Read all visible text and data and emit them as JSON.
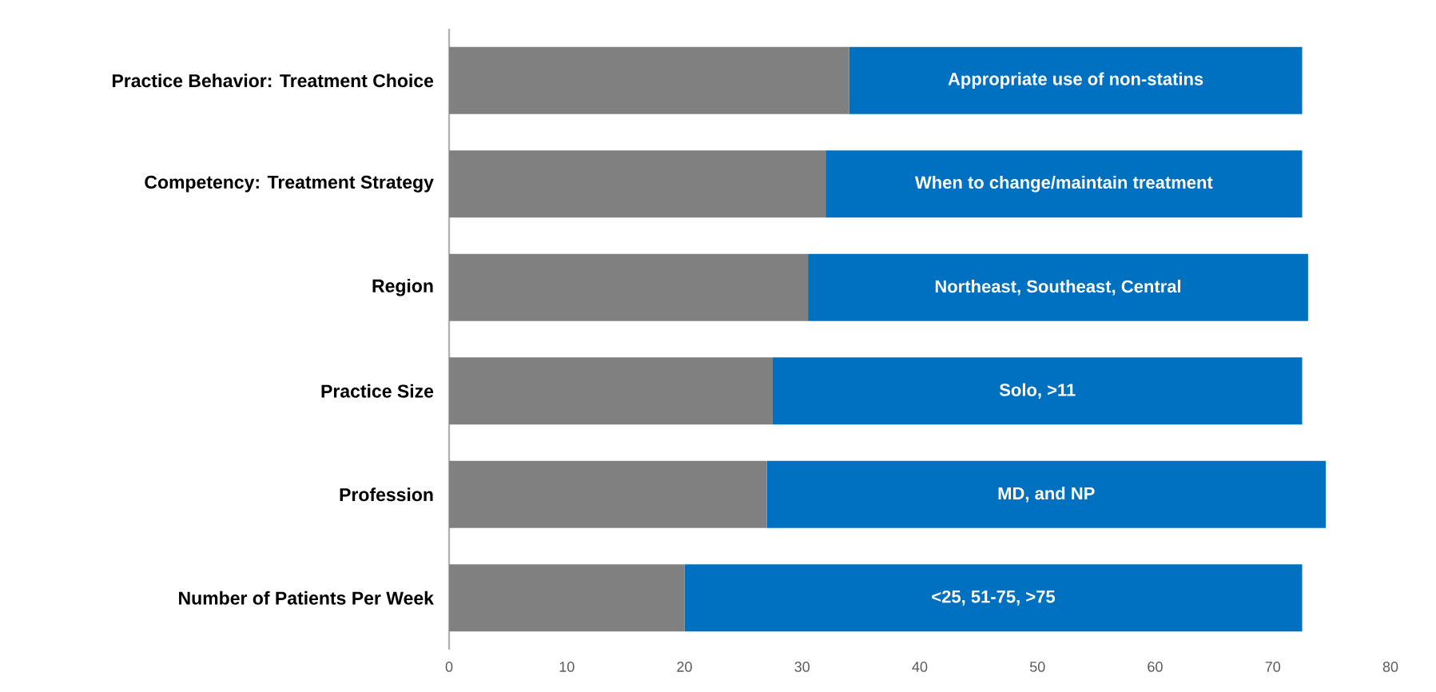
{
  "chart_data": {
    "type": "bar",
    "orientation": "horizontal",
    "stacked": true,
    "categories": [
      "Practice Behavior: Treatment Choice",
      "Competency: Treatment Strategy",
      "Region",
      "Practice Size",
      "Profession",
      "Number of Patients Per Week"
    ],
    "series": [
      {
        "color": "#808080",
        "values": [
          34,
          32,
          30.5,
          27.5,
          27,
          20
        ]
      },
      {
        "color": "#0070c0",
        "values": [
          38.5,
          40.5,
          42.5,
          45,
          47.5,
          52.5
        ]
      }
    ],
    "xlim": [
      0,
      80
    ],
    "xticks": [
      0,
      10,
      20,
      30,
      40,
      50,
      60,
      70,
      80
    ],
    "annotations": [
      "Appropriate use of non-statins",
      "When to change/maintain treatment",
      "Northeast, Southeast, Central",
      "Solo, >11",
      "MD, and NP",
      "<25, 51-75, >75"
    ]
  }
}
